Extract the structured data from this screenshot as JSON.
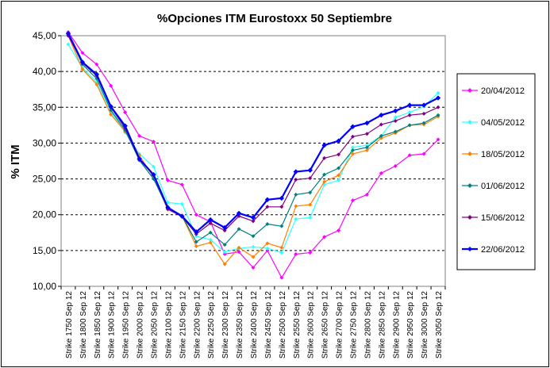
{
  "chart_data": {
    "type": "line",
    "title": "%Opciones ITM Eurostoxx 50 Septiembre",
    "xlabel": "",
    "ylabel": "% ITM",
    "ylim": [
      10,
      45
    ],
    "yticks": [
      "10,00",
      "15,00",
      "20,00",
      "25,00",
      "30,00",
      "35,00",
      "40,00",
      "45,00"
    ],
    "grid": "horizontal dashed",
    "legend_position": "right",
    "categories": [
      "Strike 1750 Sep 12",
      "Strike 1800 Sep 12",
      "Strike 1850 Sep 12",
      "Strike 1900 Sep 12",
      "Strike 1950 Sep 12",
      "Strike 2000 Sep 12",
      "Strike 2050 Sep 12",
      "Strike 2100 Sep 12",
      "Strike 2150 Sep 12",
      "Strike 2200 Sep 12",
      "Strike 2250 Sep 12",
      "Strike 2300 Sep 12",
      "Strike 2350 Sep 12",
      "Strike 2400 Sep 12",
      "Strike 2450 Sep 12",
      "Strike 2500 Sep 12",
      "Strike 2550 Sep 12",
      "Strike 2600 Sep 12",
      "Strike 2650 Sep 12",
      "Strike 2700 Sep 12",
      "Strike 2750 Sep 12",
      "Strike 2800 Sep 12",
      "Strike 2850 Sep 12",
      "Strike 2900 Sep 12",
      "Strike 2950 Sep 12",
      "Strike 3000 Sep 12",
      "Strike 3050 Sep 12"
    ],
    "series": [
      {
        "name": "20/04/2012",
        "color": "#ff00ff",
        "marker": "diamond",
        "values": [
          45.5,
          42.6,
          41.0,
          38.0,
          34.3,
          31.0,
          30.2,
          24.8,
          24.2,
          20.0,
          19.0,
          14.5,
          14.8,
          12.6,
          15.0,
          11.2,
          14.5,
          14.7,
          16.9,
          17.8,
          22.0,
          22.8,
          25.8,
          26.8,
          28.3,
          28.5,
          30.5
        ]
      },
      {
        "name": "04/05/2012",
        "color": "#33ffff",
        "marker": "diamond",
        "values": [
          43.8,
          40.5,
          38.5,
          34.4,
          31.5,
          28.5,
          26.7,
          21.7,
          21.5,
          17.0,
          16.5,
          14.8,
          15.3,
          15.5,
          15.3,
          14.7,
          19.4,
          19.6,
          24.2,
          24.8,
          29.4,
          29.7,
          31.0,
          33.6,
          34.3,
          35.1,
          37.0
        ]
      },
      {
        "name": "18/05/2012",
        "color": "#ff8000",
        "marker": "diamond",
        "values": [
          45.0,
          40.3,
          38.2,
          34.0,
          31.6,
          28.3,
          25.2,
          20.7,
          19.8,
          15.6,
          16.1,
          13.1,
          15.4,
          14.1,
          16.0,
          15.4,
          21.2,
          21.4,
          24.6,
          25.5,
          28.5,
          29.0,
          30.7,
          31.4,
          32.5,
          32.6,
          33.7
        ]
      },
      {
        "name": "01/06/2012",
        "color": "#008080",
        "marker": "diamond",
        "values": [
          45.2,
          41.0,
          39.0,
          34.6,
          31.8,
          27.6,
          25.0,
          20.9,
          19.8,
          16.2,
          17.5,
          15.8,
          18.0,
          17.0,
          18.7,
          18.4,
          22.8,
          23.1,
          25.6,
          26.5,
          29.0,
          29.4,
          31.0,
          31.6,
          32.5,
          32.8,
          33.9
        ]
      },
      {
        "name": "15/06/2012",
        "color": "#800080",
        "marker": "diamond",
        "values": [
          45.0,
          41.2,
          39.4,
          35.0,
          32.1,
          27.7,
          25.5,
          20.8,
          19.7,
          17.3,
          18.8,
          17.8,
          19.8,
          19.1,
          21.1,
          21.1,
          24.9,
          25.1,
          27.9,
          28.4,
          30.9,
          31.3,
          32.6,
          33.1,
          33.9,
          34.1,
          35.0
        ]
      },
      {
        "name": "22/06/2012",
        "color": "#0000ff",
        "marker": "diamond",
        "values": [
          45.3,
          41.3,
          39.6,
          35.1,
          32.4,
          27.8,
          25.6,
          21.0,
          19.8,
          17.6,
          19.3,
          18.2,
          20.2,
          19.6,
          22.1,
          22.3,
          26.0,
          26.2,
          29.7,
          30.3,
          32.3,
          32.8,
          33.9,
          34.5,
          35.3,
          35.3,
          36.3
        ]
      }
    ]
  }
}
